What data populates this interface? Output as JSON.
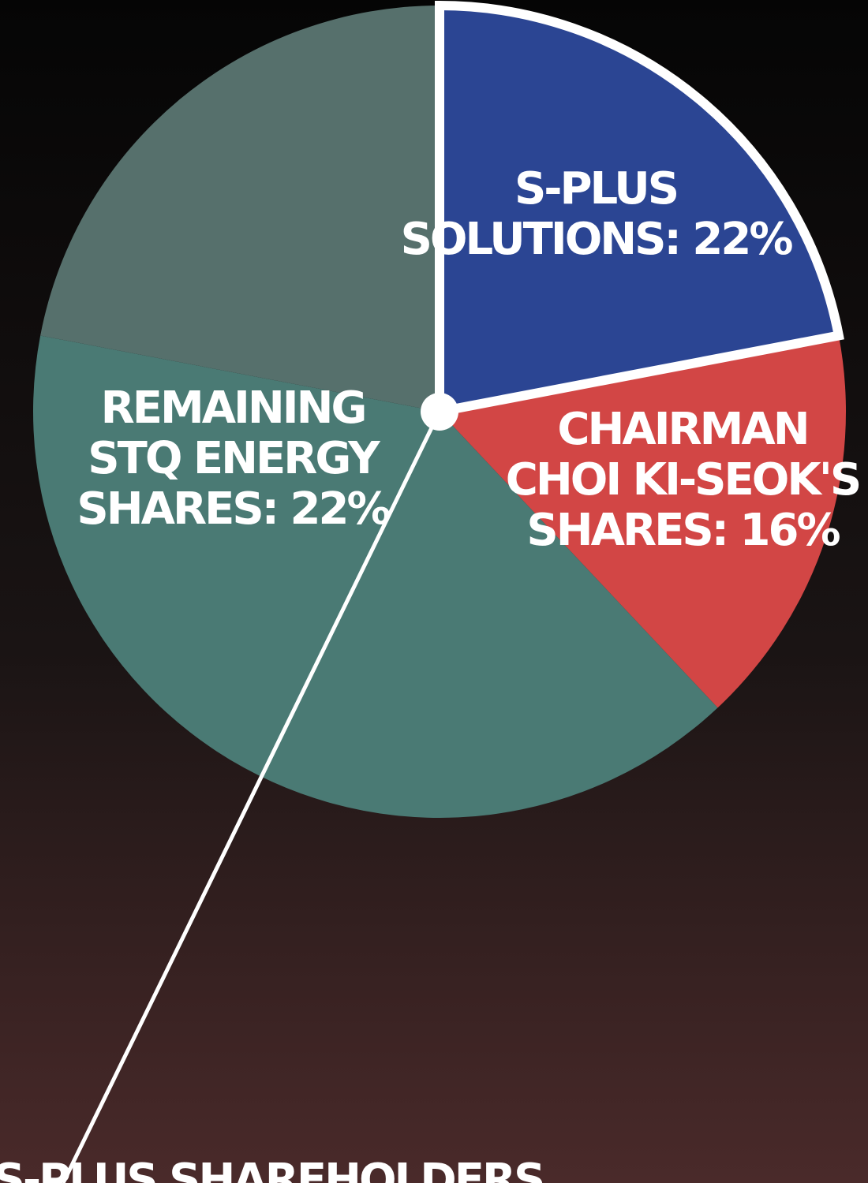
{
  "chart_data": {
    "type": "pie",
    "categories": [
      [
        "S-PLUS",
        "SOLUTIONS: 22%"
      ],
      [
        "CHAIRMAN",
        "CHOI KI-SEOK'S",
        "SHARES: 16%"
      ],
      [
        "S-PLUS SHAREHOLDERS"
      ],
      [
        "REMAINING",
        "STQ ENERGY",
        "SHARES: 22%"
      ]
    ],
    "values": [
      22,
      16,
      40,
      22
    ],
    "colors": [
      "#2b4593",
      "#d24645",
      "#4a7a74",
      "#56706c"
    ]
  }
}
